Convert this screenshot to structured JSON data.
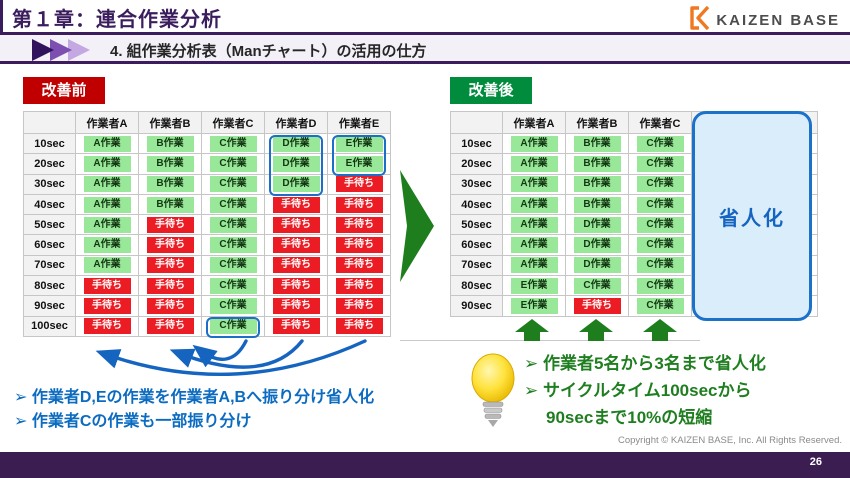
{
  "header": {
    "chapter_title": "第１章：連合作業分析",
    "section_title": "4. 組作業分析表（Manチャート）の活用の仕方",
    "logo_text": "KAIZEN BASE"
  },
  "before": {
    "label": "改善前",
    "table": {
      "headers": [
        "",
        "作業者A",
        "作業者B",
        "作業者C",
        "作業者D",
        "作業者E"
      ],
      "rows": [
        {
          "time": "10sec",
          "cells": [
            {
              "text": "A作業",
              "state": "work"
            },
            {
              "text": "B作業",
              "state": "work"
            },
            {
              "text": "C作業",
              "state": "work"
            },
            {
              "text": "D作業",
              "state": "work"
            },
            {
              "text": "E作業",
              "state": "work"
            }
          ]
        },
        {
          "time": "20sec",
          "cells": [
            {
              "text": "A作業",
              "state": "work"
            },
            {
              "text": "B作業",
              "state": "work"
            },
            {
              "text": "C作業",
              "state": "work"
            },
            {
              "text": "D作業",
              "state": "work"
            },
            {
              "text": "E作業",
              "state": "work"
            }
          ]
        },
        {
          "time": "30sec",
          "cells": [
            {
              "text": "A作業",
              "state": "work"
            },
            {
              "text": "B作業",
              "state": "work"
            },
            {
              "text": "C作業",
              "state": "work"
            },
            {
              "text": "D作業",
              "state": "work"
            },
            {
              "text": "手待ち",
              "state": "wait"
            }
          ]
        },
        {
          "time": "40sec",
          "cells": [
            {
              "text": "A作業",
              "state": "work"
            },
            {
              "text": "B作業",
              "state": "work"
            },
            {
              "text": "C作業",
              "state": "work"
            },
            {
              "text": "手待ち",
              "state": "wait"
            },
            {
              "text": "手待ち",
              "state": "wait"
            }
          ]
        },
        {
          "time": "50sec",
          "cells": [
            {
              "text": "A作業",
              "state": "work"
            },
            {
              "text": "手待ち",
              "state": "wait"
            },
            {
              "text": "C作業",
              "state": "work"
            },
            {
              "text": "手待ち",
              "state": "wait"
            },
            {
              "text": "手待ち",
              "state": "wait"
            }
          ]
        },
        {
          "time": "60sec",
          "cells": [
            {
              "text": "A作業",
              "state": "work"
            },
            {
              "text": "手待ち",
              "state": "wait"
            },
            {
              "text": "C作業",
              "state": "work"
            },
            {
              "text": "手待ち",
              "state": "wait"
            },
            {
              "text": "手待ち",
              "state": "wait"
            }
          ]
        },
        {
          "time": "70sec",
          "cells": [
            {
              "text": "A作業",
              "state": "work"
            },
            {
              "text": "手待ち",
              "state": "wait"
            },
            {
              "text": "C作業",
              "state": "work"
            },
            {
              "text": "手待ち",
              "state": "wait"
            },
            {
              "text": "手待ち",
              "state": "wait"
            }
          ]
        },
        {
          "time": "80sec",
          "cells": [
            {
              "text": "手待ち",
              "state": "wait"
            },
            {
              "text": "手待ち",
              "state": "wait"
            },
            {
              "text": "C作業",
              "state": "work"
            },
            {
              "text": "手待ち",
              "state": "wait"
            },
            {
              "text": "手待ち",
              "state": "wait"
            }
          ]
        },
        {
          "time": "90sec",
          "cells": [
            {
              "text": "手待ち",
              "state": "wait"
            },
            {
              "text": "手待ち",
              "state": "wait"
            },
            {
              "text": "C作業",
              "state": "work"
            },
            {
              "text": "手待ち",
              "state": "wait"
            },
            {
              "text": "手待ち",
              "state": "wait"
            }
          ]
        },
        {
          "time": "100sec",
          "cells": [
            {
              "text": "手待ち",
              "state": "wait"
            },
            {
              "text": "手待ち",
              "state": "wait"
            },
            {
              "text": "C作業",
              "state": "work"
            },
            {
              "text": "手待ち",
              "state": "wait"
            },
            {
              "text": "手待ち",
              "state": "wait"
            }
          ]
        }
      ]
    },
    "notes": [
      {
        "text": "➢ 作業者D,Eの作業を作業者A,Bへ振り分け省人化",
        "indent": false
      },
      {
        "text": "➢ 作業者Cの作業も一部振り分け",
        "indent": false
      }
    ]
  },
  "after": {
    "label": "改善後",
    "table": {
      "headers": [
        "",
        "作業者A",
        "作業者B",
        "作業者C",
        "",
        ""
      ],
      "rows": [
        {
          "time": "10sec",
          "cells": [
            {
              "text": "A作業",
              "state": "work"
            },
            {
              "text": "B作業",
              "state": "work"
            },
            {
              "text": "C作業",
              "state": "work"
            },
            {
              "text": "",
              "state": "empty"
            },
            {
              "text": "",
              "state": "empty"
            }
          ]
        },
        {
          "time": "20sec",
          "cells": [
            {
              "text": "A作業",
              "state": "work"
            },
            {
              "text": "B作業",
              "state": "work"
            },
            {
              "text": "C作業",
              "state": "work"
            },
            {
              "text": "",
              "state": "empty"
            },
            {
              "text": "",
              "state": "empty"
            }
          ]
        },
        {
          "time": "30sec",
          "cells": [
            {
              "text": "A作業",
              "state": "work"
            },
            {
              "text": "B作業",
              "state": "work"
            },
            {
              "text": "C作業",
              "state": "work"
            },
            {
              "text": "",
              "state": "empty"
            },
            {
              "text": "",
              "state": "empty"
            }
          ]
        },
        {
          "time": "40sec",
          "cells": [
            {
              "text": "A作業",
              "state": "work"
            },
            {
              "text": "B作業",
              "state": "work"
            },
            {
              "text": "C作業",
              "state": "work"
            },
            {
              "text": "",
              "state": "empty"
            },
            {
              "text": "",
              "state": "empty"
            }
          ]
        },
        {
          "time": "50sec",
          "cells": [
            {
              "text": "A作業",
              "state": "work"
            },
            {
              "text": "D作業",
              "state": "work"
            },
            {
              "text": "C作業",
              "state": "work"
            },
            {
              "text": "",
              "state": "empty"
            },
            {
              "text": "",
              "state": "empty"
            }
          ]
        },
        {
          "time": "60sec",
          "cells": [
            {
              "text": "A作業",
              "state": "work"
            },
            {
              "text": "D作業",
              "state": "work"
            },
            {
              "text": "C作業",
              "state": "work"
            },
            {
              "text": "",
              "state": "empty"
            },
            {
              "text": "",
              "state": "empty"
            }
          ]
        },
        {
          "time": "70sec",
          "cells": [
            {
              "text": "A作業",
              "state": "work"
            },
            {
              "text": "D作業",
              "state": "work"
            },
            {
              "text": "C作業",
              "state": "work"
            },
            {
              "text": "",
              "state": "empty"
            },
            {
              "text": "",
              "state": "empty"
            }
          ]
        },
        {
          "time": "80sec",
          "cells": [
            {
              "text": "E作業",
              "state": "work"
            },
            {
              "text": "C作業",
              "state": "work"
            },
            {
              "text": "C作業",
              "state": "work"
            },
            {
              "text": "",
              "state": "empty"
            },
            {
              "text": "",
              "state": "empty"
            }
          ]
        },
        {
          "time": "90sec",
          "cells": [
            {
              "text": "E作業",
              "state": "work"
            },
            {
              "text": "手待ち",
              "state": "wait"
            },
            {
              "text": "C作業",
              "state": "work"
            },
            {
              "text": "",
              "state": "empty"
            },
            {
              "text": "",
              "state": "empty"
            }
          ]
        }
      ]
    },
    "saving_box_label": "省人化",
    "notes": [
      {
        "text": "➢ 作業者5名から3名まで省人化",
        "indent": false
      },
      {
        "text": "➢ サイクルタイム100secから",
        "indent": false
      },
      {
        "text": "90secまで10%の短縮",
        "indent": true
      }
    ]
  },
  "footer": {
    "copyright": "Copyright ©  KAIZEN BASE, Inc.  All Rights Reserved.",
    "page_number": "26"
  },
  "colors": {
    "theme_purple": "#3B1D5E",
    "before_red": "#C00000",
    "after_green": "#008B3D",
    "work_green": "#99E899",
    "wait_red": "#EC1C24",
    "highlight_blue": "#1B6FC8",
    "note_blue": "#0B6BC0",
    "note_green": "#1F7E1F",
    "saving_box_fill": "#DAEDFB",
    "arrow_green": "#1E7E1E"
  }
}
